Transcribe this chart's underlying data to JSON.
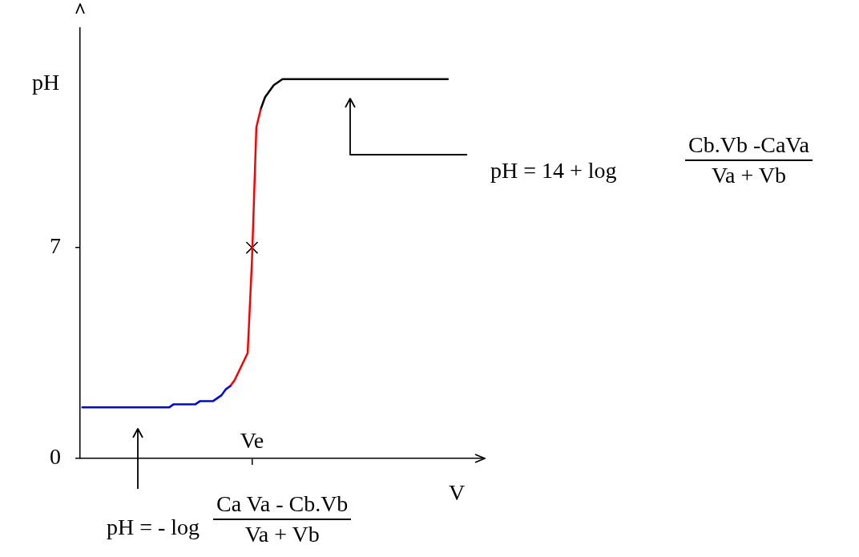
{
  "chart_data": {
    "type": "line",
    "xlabel": "V",
    "ylabel": "pH",
    "categories": [
      null,
      null,
      null,
      null,
      null,
      null,
      null,
      null,
      null,
      null,
      null,
      null,
      null,
      null,
      null,
      null,
      null,
      null,
      null,
      null,
      null,
      null,
      null,
      null,
      null,
      null,
      null,
      null,
      null,
      null,
      null,
      null,
      null,
      null,
      null,
      null,
      null,
      null,
      null,
      "Ve",
      null,
      null,
      null,
      null,
      null,
      null,
      null,
      null,
      null,
      null,
      null,
      null,
      null,
      null,
      null,
      null,
      null,
      null,
      null,
      null,
      null,
      null,
      null,
      null,
      null,
      null,
      null,
      null,
      null,
      null,
      null,
      null,
      null,
      null,
      null,
      null,
      null,
      null,
      null,
      null,
      null,
      null,
      null,
      null,
      null,
      null,
      null,
      null,
      null,
      null,
      null,
      null,
      null
    ],
    "ylim": [
      0,
      14.3
    ],
    "yticks": [
      0,
      7
    ],
    "marker": "none",
    "series": [
      {
        "color": "#0000ff",
        "values": [
          1.7,
          1.7,
          1.7,
          1.7,
          1.7,
          1.7,
          1.7,
          1.7,
          1.7,
          1.7,
          1.7,
          1.7,
          1.7,
          1.7,
          1.7,
          1.7,
          1.7,
          1.7,
          1.7,
          1.7,
          1.7,
          1.8,
          1.8,
          1.8,
          1.8,
          1.8,
          1.8,
          1.9,
          1.9,
          1.9,
          1.9,
          2.0,
          2.1,
          2.3,
          2.4,
          null,
          null,
          null,
          null,
          null,
          null,
          null,
          null,
          null,
          null,
          null,
          null,
          null,
          null,
          null,
          null,
          null,
          null,
          null,
          null,
          null,
          null,
          null,
          null,
          null,
          null,
          null,
          null,
          null,
          null,
          null,
          null,
          null,
          null,
          null,
          null,
          null,
          null,
          null,
          null,
          null,
          null,
          null,
          null,
          null,
          null,
          null,
          null,
          null,
          null,
          null,
          null,
          null,
          null,
          null,
          null,
          null,
          null
        ]
      },
      {
        "color": "#ff0000",
        "values": [
          null,
          null,
          null,
          null,
          null,
          null,
          null,
          null,
          null,
          null,
          null,
          null,
          null,
          null,
          null,
          null,
          null,
          null,
          null,
          null,
          null,
          null,
          null,
          null,
          null,
          null,
          null,
          null,
          null,
          null,
          null,
          null,
          null,
          null,
          2.4,
          2.6,
          2.9,
          3.2,
          3.5,
          6.6,
          11.0,
          11.6,
          null,
          null,
          null,
          null,
          null,
          null,
          null,
          null,
          null,
          null,
          null,
          null,
          null,
          null,
          null,
          null,
          null,
          null,
          null,
          null,
          null,
          null,
          null,
          null,
          null,
          null,
          null,
          null,
          null,
          null,
          null,
          null,
          null,
          null,
          null,
          null,
          null,
          null,
          null,
          null,
          null,
          null,
          null,
          null,
          null,
          null,
          null,
          null,
          null,
          null,
          null
        ]
      },
      {
        "color": "#000000",
        "values": [
          null,
          null,
          null,
          null,
          null,
          null,
          null,
          null,
          null,
          null,
          null,
          null,
          null,
          null,
          null,
          null,
          null,
          null,
          null,
          null,
          null,
          null,
          null,
          null,
          null,
          null,
          null,
          null,
          null,
          null,
          null,
          null,
          null,
          null,
          null,
          null,
          null,
          null,
          null,
          null,
          null,
          11.6,
          12.0,
          12.2,
          12.4,
          12.5,
          12.6,
          12.6,
          12.6,
          12.6,
          12.6,
          12.6,
          12.6,
          12.6,
          12.6,
          12.6,
          12.6,
          12.6,
          12.6,
          12.6,
          12.6,
          12.6,
          12.6,
          12.6,
          12.6,
          12.6,
          12.6,
          12.6,
          12.6,
          12.6,
          12.6,
          12.6,
          12.6,
          12.6,
          12.6,
          12.6,
          12.6,
          12.6,
          12.6,
          12.6,
          12.6,
          12.6,
          12.6,
          12.6,
          12.6,
          null,
          null,
          null,
          null,
          null,
          null,
          null,
          null
        ]
      },
      {
        "type": "scatter",
        "marker": "cross",
        "color": "#000000",
        "x": [
          "Ve"
        ],
        "values": [
          7.0
        ]
      }
    ],
    "annotations": [
      "pH = - log",
      "Ca Va - Cb.Vb",
      "Va + Vb",
      "pH = 14 + log",
      "Cb.Vb -CaVa",
      "Va + Vb"
    ]
  }
}
